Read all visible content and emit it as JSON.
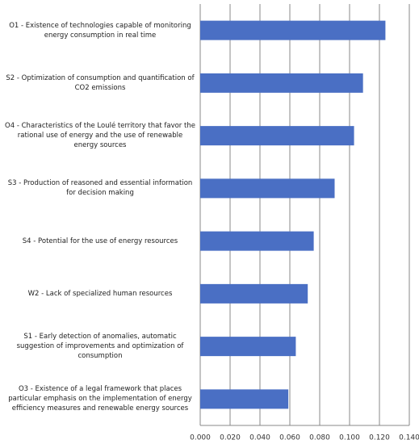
{
  "chart_data": {
    "type": "bar",
    "orientation": "horizontal",
    "categories": [
      "O1 - Existence of technologies capable of monitoring energy consumption in real time",
      "S2 - Optimization of consumption and quantification of CO2 emissions",
      "O4 - Characteristics of the Loulé territory that favor the rational use of energy and the use of renewable energy sources",
      "S3 - Production of reasoned and essential information for decision making",
      "S4 - Potential for the use of energy resources",
      "W2 - Lack of specialized human resources",
      "S1 - Early detection of anomalies, automatic suggestion of improvements and optimization of consumption",
      "O3 - Existence of a legal framework that places particular emphasis on the implementation of energy efficiency measures and renewable energy sources"
    ],
    "values": [
      0.124,
      0.109,
      0.103,
      0.09,
      0.076,
      0.072,
      0.064,
      0.059
    ],
    "color": "#4a6fc4",
    "xlim": [
      0,
      0.14
    ],
    "xticks": [
      {
        "value": 0,
        "label": "0.000"
      },
      {
        "value": 0.02,
        "label": "0.020"
      },
      {
        "value": 0.04,
        "label": "0.040"
      },
      {
        "value": 0.06,
        "label": "0.060"
      },
      {
        "value": 0.08,
        "label": "0.080"
      },
      {
        "value": 0.1,
        "label": "0.100"
      },
      {
        "value": 0.12,
        "label": "0.120"
      },
      {
        "value": 0.14,
        "label": "0.140"
      }
    ],
    "grid": true
  }
}
